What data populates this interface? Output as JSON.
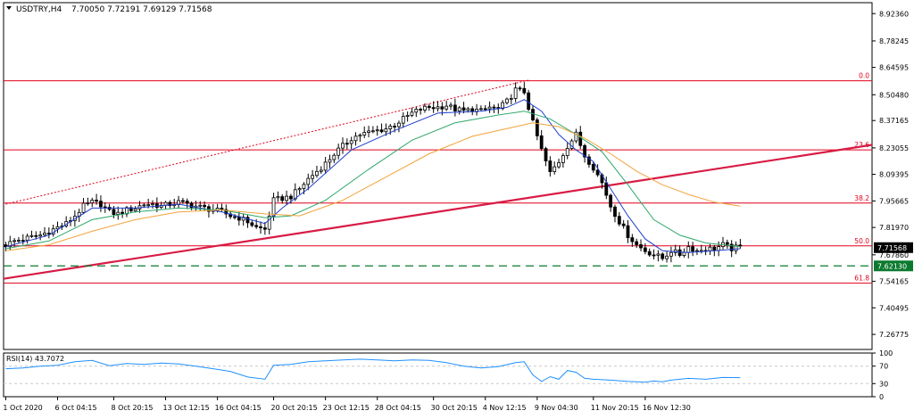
{
  "header": {
    "symbol": "USDTRY,H4",
    "ohlc": "7.70050 7.72191 7.69129 7.71568",
    "rsi_label": "RSI(14) 43.7072"
  },
  "colors": {
    "candle": "#000000",
    "fib_line": "#e0001b",
    "trendline": "#d81b44",
    "dotted_channel": "#e0001b",
    "ma_fast": "#1f3fcc",
    "ma_mid": "#2ea86b",
    "ma_slow": "#f2a33a",
    "support": "#0b7a2e",
    "rsi": "#1e90ff",
    "grid": "#c8c8c8"
  },
  "chart_data": [
    {
      "type": "candlestick",
      "ylim": [
        7.19,
        8.98
      ],
      "y_ticks": [
        "8.92360",
        "8.78245",
        "8.64595",
        "8.50480",
        "8.37165",
        "8.23055",
        "8.09395",
        "7.95665",
        "7.81970",
        "7.67860",
        "7.54165",
        "7.40495",
        "7.26775"
      ],
      "x_ticks": [
        "1 Oct 2020",
        "6 Oct 04:15",
        "8 Oct 20:15",
        "13 Oct 12:15",
        "16 Oct 04:15",
        "20 Oct 20:15",
        "23 Oct 12:15",
        "28 Oct 04:15",
        "30 Oct 20:15",
        "4 Nov 12:15",
        "9 Nov 04:30",
        "11 Nov 20:15",
        "16 Nov 12:30"
      ],
      "close_path": [
        [
          0,
          7.73
        ],
        [
          2,
          7.75
        ],
        [
          4,
          7.76
        ],
        [
          6,
          7.77
        ],
        [
          8,
          7.78
        ],
        [
          10,
          7.8
        ],
        [
          12,
          7.82
        ],
        [
          14,
          7.84
        ],
        [
          16,
          7.88
        ],
        [
          18,
          7.93
        ],
        [
          20,
          7.95
        ],
        [
          22,
          7.94
        ],
        [
          24,
          7.9
        ],
        [
          26,
          7.89
        ],
        [
          28,
          7.91
        ],
        [
          30,
          7.92
        ],
        [
          32,
          7.94
        ],
        [
          34,
          7.94
        ],
        [
          36,
          7.93
        ],
        [
          38,
          7.94
        ],
        [
          40,
          7.95
        ],
        [
          42,
          7.94
        ],
        [
          44,
          7.93
        ],
        [
          46,
          7.92
        ],
        [
          48,
          7.91
        ],
        [
          50,
          7.9
        ],
        [
          52,
          7.88
        ],
        [
          54,
          7.87
        ],
        [
          56,
          7.85
        ],
        [
          58,
          7.82
        ],
        [
          60,
          7.81
        ],
        [
          62,
          7.96
        ],
        [
          64,
          7.97
        ],
        [
          66,
          7.98
        ],
        [
          68,
          8.02
        ],
        [
          70,
          8.07
        ],
        [
          72,
          8.11
        ],
        [
          74,
          8.15
        ],
        [
          76,
          8.2
        ],
        [
          78,
          8.24
        ],
        [
          80,
          8.28
        ],
        [
          82,
          8.3
        ],
        [
          84,
          8.31
        ],
        [
          86,
          8.32
        ],
        [
          88,
          8.33
        ],
        [
          90,
          8.35
        ],
        [
          92,
          8.38
        ],
        [
          94,
          8.41
        ],
        [
          96,
          8.43
        ],
        [
          98,
          8.44
        ],
        [
          100,
          8.44
        ],
        [
          102,
          8.45
        ],
        [
          104,
          8.43
        ],
        [
          106,
          8.42
        ],
        [
          108,
          8.43
        ],
        [
          110,
          8.42
        ],
        [
          112,
          8.44
        ],
        [
          114,
          8.43
        ],
        [
          116,
          8.47
        ],
        [
          118,
          8.53
        ],
        [
          120,
          8.52
        ],
        [
          122,
          8.36
        ],
        [
          124,
          8.22
        ],
        [
          126,
          8.1
        ],
        [
          128,
          8.16
        ],
        [
          130,
          8.24
        ],
        [
          132,
          8.3
        ],
        [
          134,
          8.19
        ],
        [
          136,
          8.13
        ],
        [
          138,
          8.05
        ],
        [
          140,
          7.93
        ],
        [
          142,
          7.85
        ],
        [
          144,
          7.78
        ],
        [
          146,
          7.73
        ],
        [
          148,
          7.7
        ],
        [
          150,
          7.68
        ],
        [
          152,
          7.66
        ],
        [
          154,
          7.7
        ],
        [
          156,
          7.68
        ],
        [
          158,
          7.72
        ],
        [
          160,
          7.7
        ],
        [
          162,
          7.71
        ],
        [
          164,
          7.71
        ],
        [
          166,
          7.73
        ],
        [
          168,
          7.71
        ],
        [
          170,
          7.72
        ]
      ],
      "series": [
        {
          "values": [
            [
              0,
              7.72
            ],
            [
              10,
              7.78
            ],
            [
              20,
              7.92
            ],
            [
              30,
              7.92
            ],
            [
              40,
              7.94
            ],
            [
              50,
              7.9
            ],
            [
              60,
              7.84
            ],
            [
              64,
              7.92
            ],
            [
              70,
              8.02
            ],
            [
              80,
              8.22
            ],
            [
              90,
              8.32
            ],
            [
              100,
              8.41
            ],
            [
              110,
              8.42
            ],
            [
              116,
              8.44
            ],
            [
              120,
              8.48
            ],
            [
              124,
              8.42
            ],
            [
              128,
              8.3
            ],
            [
              132,
              8.22
            ],
            [
              136,
              8.16
            ],
            [
              140,
              8.02
            ],
            [
              144,
              7.88
            ],
            [
              148,
              7.76
            ],
            [
              152,
              7.7
            ],
            [
              158,
              7.69
            ],
            [
              164,
              7.7
            ],
            [
              170,
              7.71
            ]
          ]
        },
        {
          "values": [
            [
              0,
              7.71
            ],
            [
              10,
              7.75
            ],
            [
              20,
              7.86
            ],
            [
              30,
              7.9
            ],
            [
              40,
              7.92
            ],
            [
              50,
              7.91
            ],
            [
              60,
              7.87
            ],
            [
              66,
              7.88
            ],
            [
              74,
              7.96
            ],
            [
              84,
              8.12
            ],
            [
              94,
              8.27
            ],
            [
              104,
              8.36
            ],
            [
              114,
              8.4
            ],
            [
              120,
              8.42
            ],
            [
              126,
              8.38
            ],
            [
              132,
              8.3
            ],
            [
              138,
              8.21
            ],
            [
              144,
              8.04
            ],
            [
              150,
              7.86
            ],
            [
              156,
              7.78
            ],
            [
              162,
              7.74
            ],
            [
              170,
              7.72
            ]
          ]
        },
        {
          "values": [
            [
              0,
              7.7
            ],
            [
              10,
              7.73
            ],
            [
              20,
              7.8
            ],
            [
              30,
              7.86
            ],
            [
              40,
              7.9
            ],
            [
              50,
              7.91
            ],
            [
              60,
              7.89
            ],
            [
              68,
              7.88
            ],
            [
              78,
              7.96
            ],
            [
              88,
              8.08
            ],
            [
              98,
              8.2
            ],
            [
              108,
              8.29
            ],
            [
              116,
              8.33
            ],
            [
              122,
              8.36
            ],
            [
              128,
              8.34
            ],
            [
              134,
              8.28
            ],
            [
              140,
              8.2
            ],
            [
              146,
              8.11
            ],
            [
              152,
              8.04
            ],
            [
              158,
              7.99
            ],
            [
              164,
              7.95
            ],
            [
              170,
              7.93
            ]
          ]
        }
      ],
      "fib_levels": [
        {
          "label": "0.0",
          "value": 8.5766
        },
        {
          "label": "23.6",
          "value": 8.22
        },
        {
          "label": "38.2",
          "value": 7.9456
        },
        {
          "label": "50.0",
          "value": 7.7248
        },
        {
          "label": "61.8",
          "value": 7.532
        }
      ],
      "trendline": [
        [
          0,
          7.555
        ],
        [
          201,
          8.246
        ]
      ],
      "dotted_channel": [
        [
          0,
          7.94
        ],
        [
          121,
          8.58
        ]
      ],
      "support_level": 7.6213,
      "price_tags": [
        {
          "label": "7.71568",
          "value": 7.71568
        },
        {
          "label": "7.62130",
          "value": 7.6213
        }
      ],
      "last_index": 170
    },
    {
      "type": "line",
      "ylim": [
        0,
        100
      ],
      "y_ticks": [
        "100",
        "70",
        "30",
        "0"
      ],
      "levels": [
        70,
        30
      ],
      "rsi": [
        [
          0,
          64
        ],
        [
          4,
          66
        ],
        [
          8,
          70
        ],
        [
          12,
          72
        ],
        [
          16,
          80
        ],
        [
          20,
          83
        ],
        [
          24,
          71
        ],
        [
          28,
          76
        ],
        [
          32,
          74
        ],
        [
          36,
          77
        ],
        [
          40,
          75
        ],
        [
          44,
          70
        ],
        [
          48,
          64
        ],
        [
          52,
          58
        ],
        [
          56,
          45
        ],
        [
          60,
          40
        ],
        [
          62,
          72
        ],
        [
          66,
          74
        ],
        [
          70,
          80
        ],
        [
          74,
          82
        ],
        [
          78,
          84
        ],
        [
          82,
          86
        ],
        [
          86,
          84
        ],
        [
          90,
          82
        ],
        [
          94,
          84
        ],
        [
          98,
          83
        ],
        [
          102,
          78
        ],
        [
          106,
          70
        ],
        [
          110,
          66
        ],
        [
          114,
          69
        ],
        [
          118,
          78
        ],
        [
          120,
          80
        ],
        [
          122,
          50
        ],
        [
          124,
          35
        ],
        [
          126,
          46
        ],
        [
          128,
          40
        ],
        [
          130,
          60
        ],
        [
          132,
          56
        ],
        [
          134,
          42
        ],
        [
          136,
          40
        ],
        [
          140,
          38
        ],
        [
          144,
          35
        ],
        [
          146,
          34
        ],
        [
          148,
          33
        ],
        [
          150,
          36
        ],
        [
          152,
          34
        ],
        [
          154,
          38
        ],
        [
          158,
          42
        ],
        [
          162,
          40
        ],
        [
          166,
          44
        ],
        [
          170,
          43.7
        ]
      ]
    }
  ]
}
